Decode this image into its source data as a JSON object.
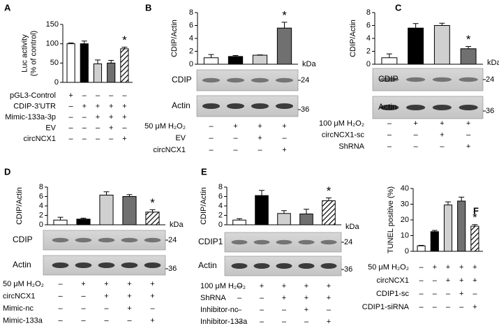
{
  "chart_data": [
    {
      "type": "bar",
      "panel": "A",
      "y_label": [
        "Luc activity",
        "(% of control)"
      ],
      "categories": [
        null,
        null,
        null,
        null,
        null
      ],
      "values": [
        100,
        100,
        48,
        50,
        87
      ],
      "errors": [
        2,
        7,
        10,
        7,
        4
      ],
      "colors": [
        "#ffffff",
        "#000000",
        "#d0d0d0",
        "#707070",
        "hatch"
      ],
      "annotations": [
        null,
        null,
        null,
        null,
        "*"
      ],
      "ylim": [
        0,
        150
      ],
      "yticks": [
        0,
        50,
        100,
        150
      ],
      "conditions": [
        {
          "label": "pGL3-Control",
          "signs": [
            "+",
            "–",
            "–",
            "–",
            "–"
          ]
        },
        {
          "label": "CDIP-3'UTR",
          "signs": [
            "–",
            "+",
            "+",
            "+",
            "+"
          ]
        },
        {
          "label": "Mimic-133a-3p",
          "signs": [
            "–",
            "–",
            "+",
            "+",
            "+"
          ]
        },
        {
          "label": "EV",
          "signs": [
            "–",
            "–",
            "–",
            "+",
            "–"
          ]
        },
        {
          "label": "circNCX1",
          "signs": [
            "–",
            "–",
            "–",
            "–",
            "+"
          ]
        }
      ]
    },
    {
      "type": "bar",
      "panel": "B",
      "y_label": [
        "CDIP/Actin"
      ],
      "categories": [
        null,
        null,
        null,
        null
      ],
      "values": [
        1.0,
        1.2,
        1.4,
        5.6
      ],
      "errors": [
        0.5,
        0.15,
        0.05,
        0.9
      ],
      "colors": [
        "#ffffff",
        "#000000",
        "#d0d0d0",
        "#707070"
      ],
      "annotations": [
        null,
        null,
        null,
        "*"
      ],
      "ylim": [
        0,
        8
      ],
      "yticks": [
        0,
        2,
        4,
        6,
        8
      ],
      "blot_unit": "kDa",
      "blots": [
        {
          "label": "CDIP",
          "marker": "24"
        },
        {
          "label": "Actin",
          "marker": "36"
        }
      ],
      "conditions": [
        {
          "label": "50 μM H₂O₂",
          "signs": [
            "–",
            "+",
            "+",
            "+"
          ]
        },
        {
          "label": "EV",
          "signs": [
            "–",
            "–",
            "+",
            "–"
          ]
        },
        {
          "label": "circNCX1",
          "signs": [
            "–",
            "–",
            "–",
            "+"
          ]
        }
      ]
    },
    {
      "type": "bar",
      "panel": "C",
      "y_label": [
        "CDIP/Actin"
      ],
      "categories": [
        null,
        null,
        null,
        null
      ],
      "values": [
        1.0,
        5.6,
        6.0,
        2.4
      ],
      "errors": [
        0.6,
        0.7,
        0.35,
        0.35
      ],
      "colors": [
        "#ffffff",
        "#000000",
        "#d0d0d0",
        "#707070"
      ],
      "annotations": [
        null,
        null,
        null,
        "*"
      ],
      "ylim": [
        0,
        8
      ],
      "yticks": [
        0,
        2,
        4,
        6,
        8
      ],
      "blot_unit": "kDa",
      "blots": [
        {
          "label": "CDIP",
          "marker": "24"
        },
        {
          "label": "Actin",
          "marker": "36"
        }
      ],
      "conditions": [
        {
          "label": "100 μM H₂O₂",
          "signs": [
            "–",
            "+",
            "+",
            "+"
          ]
        },
        {
          "label": "circNCX1-sc",
          "signs": [
            "–",
            "–",
            "+",
            "–"
          ]
        },
        {
          "label": "ShRNA",
          "signs": [
            "–",
            "–",
            "–",
            "+"
          ]
        }
      ]
    },
    {
      "type": "bar",
      "panel": "D",
      "y_label": [
        "CDIP/Actin"
      ],
      "categories": [
        null,
        null,
        null,
        null,
        null
      ],
      "values": [
        1.0,
        1.2,
        6.3,
        6.0,
        2.7
      ],
      "errors": [
        0.6,
        0.2,
        0.7,
        0.4,
        0.5
      ],
      "colors": [
        "#ffffff",
        "#000000",
        "#d0d0d0",
        "#707070",
        "hatch"
      ],
      "annotations": [
        null,
        null,
        null,
        null,
        "*"
      ],
      "ylim": [
        0,
        8
      ],
      "yticks": [
        0,
        2,
        4,
        6,
        8
      ],
      "blot_unit": "kDa",
      "blots": [
        {
          "label": "CDIP",
          "marker": "24"
        },
        {
          "label": "Actin",
          "marker": "36"
        }
      ],
      "conditions": [
        {
          "label": "50 μM H₂O₂",
          "signs": [
            "–",
            "+",
            "+",
            "+",
            "+"
          ]
        },
        {
          "label": "circNCX1",
          "signs": [
            "–",
            "–",
            "+",
            "+",
            "+"
          ]
        },
        {
          "label": "Mimic-nc",
          "signs": [
            "–",
            "–",
            "–",
            "+",
            "–"
          ]
        },
        {
          "label": "Mimic-133a",
          "signs": [
            "–",
            "–",
            "–",
            "–",
            "+"
          ]
        }
      ]
    },
    {
      "type": "bar",
      "panel": "E",
      "y_label": [
        "CDIP/Actin"
      ],
      "categories": [
        null,
        null,
        null,
        null,
        null
      ],
      "values": [
        1.0,
        6.2,
        2.4,
        2.3,
        5.1
      ],
      "errors": [
        0.3,
        1.1,
        0.6,
        1.0,
        0.6
      ],
      "colors": [
        "#ffffff",
        "#000000",
        "#d0d0d0",
        "#707070",
        "hatch"
      ],
      "annotations": [
        null,
        null,
        null,
        null,
        "*"
      ],
      "ylim": [
        0,
        8
      ],
      "yticks": [
        0,
        2,
        4,
        6,
        8
      ],
      "blot_unit": "kDa",
      "blots": [
        {
          "label": "CDIP1",
          "marker": "24"
        },
        {
          "label": "Actin",
          "marker": "36"
        }
      ],
      "conditions": [
        {
          "label": "100 μM H₂O₂",
          "signs": [
            "–",
            "+",
            "+",
            "+",
            "+"
          ]
        },
        {
          "label": "ShRNA",
          "signs": [
            "–",
            "–",
            "+",
            "+",
            "+"
          ]
        },
        {
          "label": "Inhibitor-nc",
          "signs": [
            "–",
            "–",
            "–",
            "+",
            "–"
          ]
        },
        {
          "label": "Inhibitor-133a",
          "signs": [
            "–",
            "–",
            "–",
            "–",
            "+"
          ]
        }
      ]
    },
    {
      "type": "bar",
      "panel": "F",
      "y_label": [
        "TUNEL positive (%)"
      ],
      "categories": [
        null,
        null,
        null,
        null,
        null
      ],
      "values": [
        3.5,
        12.5,
        29.5,
        32,
        16
      ],
      "errors": [
        0.3,
        0.8,
        2,
        2.5,
        1
      ],
      "colors": [
        "#ffffff",
        "#000000",
        "#d0d0d0",
        "#707070",
        "hatch"
      ],
      "annotations": [
        null,
        null,
        null,
        null,
        "*"
      ],
      "ylim": [
        0,
        40
      ],
      "yticks": [
        0,
        10,
        20,
        30,
        40
      ],
      "conditions": [
        {
          "label": "50 μM H₂O₂",
          "signs": [
            "–",
            "+",
            "+",
            "+",
            "+"
          ]
        },
        {
          "label": "circNCX1",
          "signs": [
            "–",
            "–",
            "+",
            "+",
            "+"
          ]
        },
        {
          "label": "CDIP1-sc",
          "signs": [
            "–",
            "–",
            "–",
            "+",
            "–"
          ]
        },
        {
          "label": "CDIP1-siRNA",
          "signs": [
            "–",
            "–",
            "–",
            "–",
            "+"
          ]
        }
      ]
    }
  ]
}
